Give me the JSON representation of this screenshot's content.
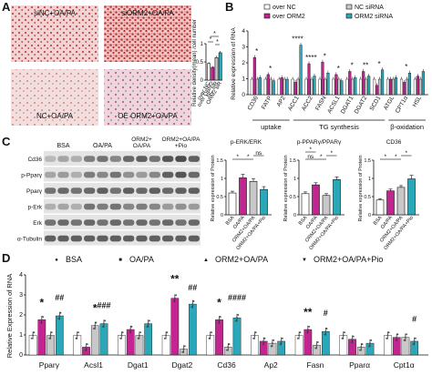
{
  "panel_labels": [
    "A",
    "B",
    "C",
    "D"
  ],
  "panel_a": {
    "micrographs": [
      "siNC+OA/PA",
      "siORM2+OA/PA",
      "NC+OA/PA",
      "OE ORM2+OA/PA"
    ],
    "chart_data": {
      "type": "bar",
      "ylabel": "Relative density(mean) /cell number",
      "categories": [
        "over NC",
        "over ORM2",
        "NC siR",
        "ORM2 siR"
      ],
      "values": [
        0.48,
        0.37,
        0.65,
        0.79
      ],
      "errors": [
        0.04,
        0.03,
        0.05,
        0.05
      ],
      "ylim": [
        0,
        1.0
      ],
      "yticks": [
        0.0,
        0.5,
        1.0
      ],
      "colors": [
        "#ffffff",
        "#c2258f",
        "#c8c8c8",
        "#2aa7b8"
      ],
      "annotations": [
        "*",
        "*",
        "*"
      ]
    }
  },
  "panel_b": {
    "chart_data": {
      "type": "bar",
      "ylabel": "Relative expression of RNA",
      "categories": [
        "CD36",
        "FATP",
        "AP2",
        "ACC1",
        "ACC2",
        "FASN",
        "ACSL1",
        "DGAT1",
        "DGAT2",
        "SCD1",
        "ATGL",
        "CPT1α",
        "HSL"
      ],
      "series": [
        {
          "name": "over NC",
          "values": [
            1.0,
            1.0,
            1.0,
            1.0,
            1.0,
            1.0,
            1.0,
            1.0,
            1.0,
            1.0,
            1.0,
            1.0,
            1.0
          ]
        },
        {
          "name": "over ORM2",
          "values": [
            2.4,
            1.3,
            1.1,
            0.8,
            2.0,
            2.1,
            1.3,
            1.5,
            1.5,
            0.6,
            1.0,
            0.8,
            1.2
          ]
        },
        {
          "name": "NC siRNA",
          "values": [
            1.0,
            1.0,
            1.0,
            1.0,
            1.0,
            1.0,
            1.0,
            1.0,
            1.0,
            1.0,
            1.0,
            1.0,
            1.0
          ]
        },
        {
          "name": "ORM2 siRNA",
          "values": [
            1.1,
            0.9,
            1.0,
            3.2,
            1.2,
            1.4,
            0.9,
            1.1,
            1.2,
            1.6,
            1.1,
            1.4,
            1.5
          ]
        }
      ],
      "ylim": [
        0,
        4
      ],
      "yticks": [
        0,
        1,
        2,
        3,
        4
      ],
      "colors": [
        "#ffffff",
        "#c2258f",
        "#c8c8c8",
        "#2aa7b8"
      ],
      "annotations": [
        "*",
        "*",
        "****",
        "****",
        "*",
        "*",
        "*",
        "**",
        "*",
        "*"
      ],
      "groups": [
        "uptake",
        "TG synthesis",
        "β-oxidation"
      ]
    }
  },
  "panel_c": {
    "blot_columns": [
      "BSA",
      "OA/PA",
      "ORM2+ OA/PA",
      "ORM2+OA/PA +Pio"
    ],
    "blot_rows": [
      "Cd36",
      "p-Pparγ",
      "Pparγ",
      "p-Erk",
      "Erk",
      "α-Tubulin"
    ],
    "charts": [
      {
        "type": "bar",
        "title": "p-ERK/ERK",
        "ylabel": "Relative expression of Protein",
        "categories": [
          "BSA",
          "OA/PA",
          "ORM2+OA/PA",
          "ORM2+OA/PA+Pio"
        ],
        "values": [
          0.62,
          1.05,
          0.95,
          0.72
        ],
        "errors": [
          0.05,
          0.1,
          0.08,
          0.08
        ],
        "ylim": [
          0,
          1.5
        ],
        "yticks": [
          0.0,
          0.5,
          1.0,
          1.5
        ],
        "colors": [
          "#ffffff",
          "#c2258f",
          "#c8c8c8",
          "#2aa7b8"
        ],
        "annotations": [
          "*",
          "*",
          "ns"
        ]
      },
      {
        "type": "bar",
        "title": "p-PPARγ/PPARγ",
        "ylabel": "Relative expression of Protein",
        "categories": [
          "BSA",
          "OA/PA",
          "ORM2+OA/PA",
          "ORM2+OA/PA+Pio"
        ],
        "values": [
          0.6,
          0.85,
          0.55,
          1.0
        ],
        "errors": [
          0.05,
          0.06,
          0.05,
          0.08
        ],
        "ylim": [
          0,
          1.5
        ],
        "yticks": [
          0.0,
          0.5,
          1.0,
          1.5
        ],
        "colors": [
          "#ffffff",
          "#c2258f",
          "#c8c8c8",
          "#2aa7b8"
        ],
        "annotations": [
          "ns",
          "*",
          "*",
          "*"
        ]
      },
      {
        "type": "bar",
        "title": "CD36",
        "ylabel": "Relative expression of Protein",
        "categories": [
          "BSA",
          "OA/PA",
          "ORM2+OA/PA",
          "ORM2+OA/PA+Pio"
        ],
        "values": [
          0.42,
          0.68,
          0.78,
          1.02
        ],
        "errors": [
          0.04,
          0.05,
          0.05,
          0.1
        ],
        "ylim": [
          0,
          1.5
        ],
        "yticks": [
          0.0,
          0.5,
          1.0,
          1.5
        ],
        "colors": [
          "#ffffff",
          "#c2258f",
          "#c8c8c8",
          "#2aa7b8"
        ],
        "annotations": [
          "*",
          "*",
          "*"
        ]
      }
    ]
  },
  "panel_d": {
    "chart_data": {
      "type": "bar",
      "ylabel": "Relative Expression of RNA",
      "categories": [
        "Pparγ",
        "Acsl1",
        "Dgat1",
        "Dgat2",
        "Cd36",
        "Ap2",
        "Fasn",
        "Pparα",
        "Cpt1α"
      ],
      "series": [
        {
          "name": "BSA",
          "values": [
            1.0,
            1.0,
            1.0,
            1.0,
            1.0,
            1.0,
            1.0,
            1.0,
            1.0
          ]
        },
        {
          "name": "OA/PA",
          "values": [
            1.8,
            0.4,
            1.3,
            2.9,
            1.8,
            0.7,
            1.3,
            0.8,
            0.9
          ]
        },
        {
          "name": "ORM2+OA/PA",
          "values": [
            1.0,
            1.5,
            1.0,
            0.3,
            0.4,
            0.6,
            0.5,
            0.4,
            0.9
          ]
        },
        {
          "name": "ORM2+OA/PA+Pio",
          "values": [
            2.0,
            1.6,
            1.6,
            2.6,
            1.9,
            0.7,
            1.2,
            0.6,
            0.7
          ]
        }
      ],
      "errors": 0.2,
      "ylim": [
        0,
        4
      ],
      "yticks": [
        0,
        1,
        2,
        3,
        4
      ],
      "colors": [
        "#ffffff",
        "#c2258f",
        "#c8c8c8",
        "#2aa7b8"
      ],
      "annotations": [
        "*",
        "##",
        "*",
        "###",
        "**",
        "##",
        "*",
        "####",
        "**",
        "#",
        "#"
      ]
    }
  }
}
